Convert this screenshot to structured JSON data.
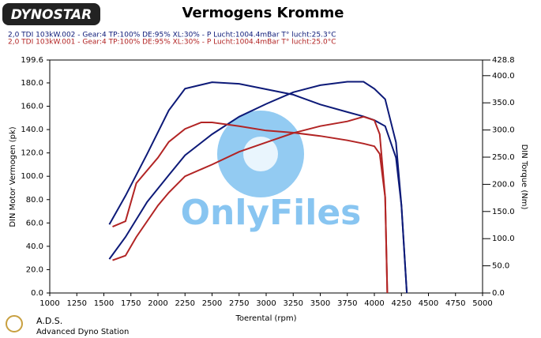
{
  "chart_data": {
    "type": "dyno",
    "logo": "DYNOSTAR",
    "title": "Vermogens Kromme",
    "y_label": "DIN Motor Vermogen (pk)",
    "y2_label": "DIN Torque (Nm)",
    "x_label": "Toerental (rpm)",
    "watermark": "OnlyFiles",
    "footer_title": "A.D.S.",
    "footer_subtitle": "Advanced Dyno Station",
    "xlim": [
      1000,
      5000
    ],
    "xticks": [
      1000,
      1250,
      1500,
      1750,
      2000,
      2250,
      2500,
      2750,
      3000,
      3250,
      3500,
      3750,
      4000,
      4250,
      4500,
      4750,
      5000
    ],
    "ylim": [
      0,
      199.6
    ],
    "yticks": [
      {
        "value": 0,
        "label": "0.0"
      },
      {
        "value": 20,
        "label": "20.0"
      },
      {
        "value": 40,
        "label": "40.0"
      },
      {
        "value": 60,
        "label": "60.0"
      },
      {
        "value": 80,
        "label": "80.0"
      },
      {
        "value": 100,
        "label": "100.0"
      },
      {
        "value": 120,
        "label": "120.0"
      },
      {
        "value": 140,
        "label": "140.0"
      },
      {
        "value": 160,
        "label": "160.0"
      },
      {
        "value": 180,
        "label": "180.0"
      },
      199.6
    ],
    "y2lim": [
      0,
      428.8
    ],
    "y2ticks": [
      {
        "value": 0,
        "label": "0.0"
      },
      {
        "value": 50,
        "label": "50.0"
      },
      {
        "value": 100,
        "label": "100.0"
      },
      {
        "value": 150,
        "label": "150.0"
      },
      {
        "value": 200,
        "label": "200.0"
      },
      {
        "value": 250,
        "label": "250.0"
      },
      {
        "value": 300,
        "label": "300.0"
      },
      {
        "value": 350,
        "label": "350.0"
      },
      {
        "value": 400,
        "label": "400.0"
      },
      428.8
    ],
    "series": [
      {
        "name": "2,0 TDI 103kW.002 - Gear:4 TP:100% DE:95% XL:30%    - P Lucht:1004.4mBar T° lucht:25.3°C",
        "color": "#0d1a78",
        "x": [
          1550,
          1700,
          1900,
          2100,
          2250,
          2500,
          2750,
          3000,
          3250,
          3500,
          3750,
          3900,
          4000,
          4100,
          4200,
          4250,
          4300
        ],
        "power": [
          29,
          48,
          78,
          101,
          118,
          136,
          151,
          162,
          172,
          178,
          181,
          181,
          175,
          166,
          129,
          75,
          0
        ],
        "torque": [
          126,
          179,
          256,
          336,
          376,
          388,
          385,
          375,
          365,
          347,
          333,
          325,
          318,
          307,
          249,
          161,
          0
        ]
      },
      {
        "name": "2,0 TDI 103kW.001 - Gear:4 TP:100% DE:95% XL:30%    - P Lucht:1004.4mBar T° lucht:25.0°C",
        "color": "#b22424",
        "x": [
          1580,
          1700,
          1800,
          2000,
          2100,
          2250,
          2400,
          2500,
          2750,
          3000,
          3250,
          3500,
          3750,
          3900,
          4000,
          4050,
          4100,
          4120
        ],
        "power": [
          28,
          32,
          48,
          75,
          86,
          100,
          106,
          110,
          121,
          129,
          137,
          143,
          147,
          151,
          148,
          136,
          82,
          0
        ],
        "torque": [
          122,
          132,
          202,
          249,
          278,
          302,
          314,
          314,
          307,
          299,
          295,
          289,
          281,
          275,
          270,
          256,
          176,
          0
        ]
      }
    ]
  }
}
